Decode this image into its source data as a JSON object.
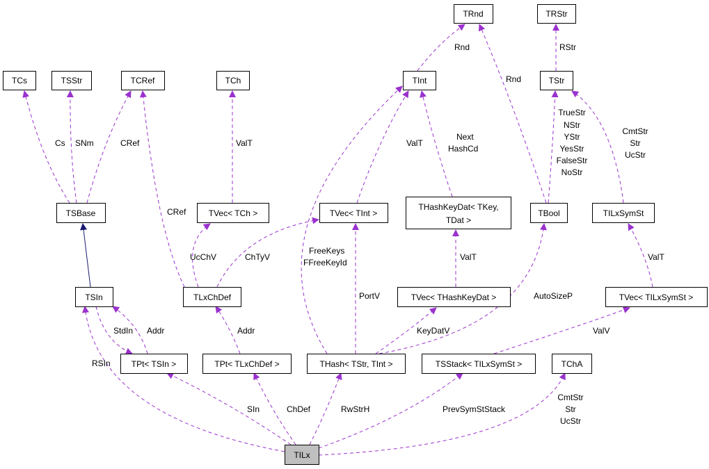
{
  "colors": {
    "usage_edge": "#9a32cd",
    "inheritance_edge": "#191970",
    "focus_node": "#bfbfbf"
  },
  "nodes": {
    "TRnd": "TRnd",
    "TRStr": "TRStr",
    "TCs": "TCs",
    "TSStr": "TSStr",
    "TCRef": "TCRef",
    "TCh": "TCh",
    "TInt": "TInt",
    "TStr": "TStr",
    "TSBase": "TSBase",
    "TVecTCh": "TVec< TCh >",
    "TVecTInt": "TVec< TInt >",
    "THashKeyDat1": "THashKeyDat< TKey,",
    "THashKeyDat2": "TDat >",
    "TBool": "TBool",
    "TILxSymSt": "TILxSymSt",
    "TSIn": "TSIn",
    "TLxChDef": "TLxChDef",
    "TVecTHashKeyDat": "TVec< THashKeyDat >",
    "TVecTILxSymSt": "TVec< TILxSymSt >",
    "TPtTSIn": "TPt< TSIn >",
    "TPtTLxChDef": "TPt< TLxChDef >",
    "THash": "THash< TStr, TInt >",
    "TSStack": "TSStack< TILxSymSt >",
    "TChA": "TChA",
    "TILx": "TILx"
  },
  "edge_labels": {
    "cs": "Cs",
    "snm": "SNm",
    "cref1": "CRef",
    "cref2": "CRef",
    "valt_tch": "ValT",
    "ucchv": "UcChV",
    "chtyv": "ChTyV",
    "valt_tint": "ValT",
    "freekeys": [
      "FreeKeys",
      "FFreeKeyId"
    ],
    "portv": "PortV",
    "nexthash": [
      "Next",
      "HashCd"
    ],
    "rnd1": "Rnd",
    "rnd2": "Rnd",
    "rstr": "RStr",
    "bool_strs": [
      "TrueStr",
      "NStr",
      "YStr",
      "YesStr",
      "FalseStr",
      "NoStr"
    ],
    "symst_strs": [
      "CmtStr",
      "Str",
      "UcStr"
    ],
    "valt_hkd": "ValT",
    "keydatv": "KeyDatV",
    "autosizep": "AutoSizeP",
    "valt_symst": "ValT",
    "valv": "ValV",
    "addr1": "Addr",
    "stdin": "StdIn",
    "addr2": "Addr",
    "rsin": "RSIn",
    "sin": "SIn",
    "chdef": "ChDef",
    "rwstrh": "RwStrH",
    "prevsymststack": "PrevSymStStack",
    "cha_strs": [
      "CmtStr",
      "Str",
      "UcStr"
    ]
  }
}
